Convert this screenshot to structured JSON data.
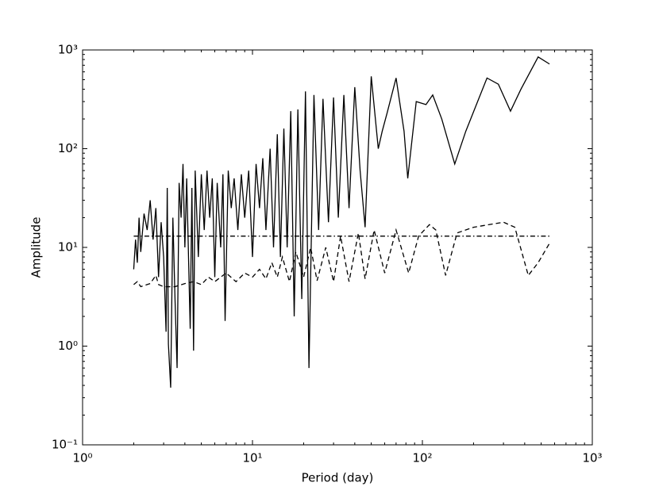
{
  "chart_data": {
    "type": "line",
    "x_label": "Period (day)",
    "y_label": "Amplitude",
    "xscale": "log",
    "yscale": "log",
    "xlim": [
      1,
      1000
    ],
    "ylim": [
      0.1,
      1000
    ],
    "xticks": [
      {
        "value": 1,
        "label": "10⁰"
      },
      {
        "value": 10,
        "label": "10¹"
      },
      {
        "value": 100,
        "label": "10²"
      },
      {
        "value": 1000,
        "label": "10³"
      }
    ],
    "yticks": [
      {
        "value": 0.1,
        "label": "10⁻¹"
      },
      {
        "value": 1,
        "label": "10⁰"
      },
      {
        "value": 10,
        "label": "10¹"
      },
      {
        "value": 100,
        "label": "10²"
      },
      {
        "value": 1000,
        "label": "10³"
      }
    ],
    "series": [
      {
        "color": "#000000",
        "dash": "solid",
        "x": [
          2.0,
          2.05,
          2.1,
          2.15,
          2.2,
          2.3,
          2.4,
          2.5,
          2.6,
          2.7,
          2.8,
          2.9,
          3.0,
          3.1,
          3.15,
          3.2,
          3.3,
          3.4,
          3.5,
          3.6,
          3.7,
          3.8,
          3.9,
          4.0,
          4.1,
          4.3,
          4.4,
          4.5,
          4.6,
          4.8,
          5.0,
          5.2,
          5.4,
          5.6,
          5.8,
          6.0,
          6.2,
          6.5,
          6.7,
          6.9,
          7.2,
          7.5,
          7.8,
          8.2,
          8.6,
          9.0,
          9.5,
          10,
          10.5,
          11,
          11.5,
          12,
          12.7,
          13.3,
          14,
          14.6,
          15.3,
          16,
          16.8,
          17.6,
          18.5,
          19.5,
          20.5,
          21.5,
          23,
          24.5,
          26,
          28,
          30,
          32,
          34.5,
          37,
          40,
          43,
          46,
          50,
          55,
          58,
          62,
          70,
          78,
          82,
          92,
          105,
          115,
          130,
          155,
          180,
          240,
          280,
          330,
          380,
          480,
          560
        ],
        "values": [
          6,
          12,
          7,
          20,
          9,
          22,
          15,
          30,
          12,
          25,
          5,
          18,
          8,
          1.4,
          40,
          1.05,
          0.38,
          20,
          3,
          0.6,
          45,
          20,
          70,
          10,
          50,
          1.5,
          40,
          0.9,
          60,
          8,
          55,
          15,
          60,
          20,
          50,
          5,
          45,
          10,
          55,
          1.8,
          60,
          25,
          50,
          15,
          55,
          20,
          60,
          8,
          70,
          25,
          80,
          15,
          100,
          10,
          140,
          8,
          160,
          10,
          240,
          2,
          250,
          3,
          380,
          0.6,
          350,
          15,
          320,
          18,
          330,
          20,
          350,
          25,
          420,
          60,
          16,
          540,
          100,
          150,
          230,
          520,
          150,
          50,
          300,
          280,
          350,
          200,
          70,
          150,
          520,
          450,
          240,
          400,
          850,
          720
        ]
      },
      {
        "color": "#000000",
        "dash": "dashed",
        "x": [
          2.0,
          2.1,
          2.2,
          2.5,
          2.7,
          2.8,
          3.0,
          3.5,
          4.0,
          4.5,
          5,
          5.5,
          6,
          7,
          8,
          9,
          10,
          11,
          12,
          13,
          14,
          15,
          16.5,
          18,
          20,
          22,
          24,
          27,
          30,
          33,
          37,
          42,
          46,
          52,
          60,
          70,
          83,
          95,
          110,
          120,
          137,
          160,
          200,
          300,
          350,
          420,
          480,
          560
        ],
        "values": [
          4.2,
          4.5,
          4.0,
          4.3,
          5.2,
          4.2,
          4.0,
          4.0,
          4.3,
          4.5,
          4.2,
          5.0,
          4.5,
          5.5,
          4.5,
          5.5,
          5.0,
          6,
          4.8,
          7,
          5,
          8,
          4.5,
          9,
          5,
          10,
          4.6,
          10,
          4.5,
          13,
          4.5,
          14,
          4.8,
          15,
          5.5,
          15,
          5.5,
          13,
          17,
          15,
          5.2,
          14,
          16,
          18,
          16,
          5.2,
          7,
          11
        ]
      },
      {
        "color": "#000000",
        "dash": "dashdot",
        "x": [
          2.0,
          560
        ],
        "values": [
          13,
          13
        ]
      }
    ]
  }
}
